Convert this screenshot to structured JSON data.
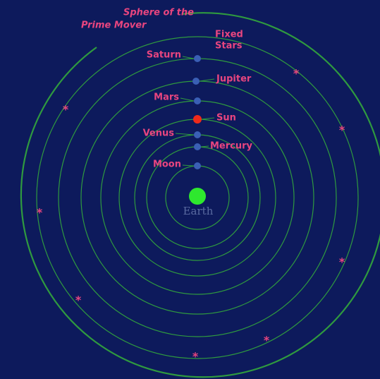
{
  "prime_mover": {
    "label_lines": [
      "Sphere of the",
      "Prime Mover"
    ]
  },
  "fixed_stars": {
    "label_lines": [
      "Fixed",
      "Stars"
    ]
  },
  "planets": [
    {
      "label": "Saturn"
    },
    {
      "label": "Jupiter"
    },
    {
      "label": "Mars"
    },
    {
      "label": "Sun"
    },
    {
      "label": "Venus"
    },
    {
      "label": "Mercury"
    },
    {
      "label": "Moon"
    }
  ],
  "center": {
    "label": "Earth"
  }
}
